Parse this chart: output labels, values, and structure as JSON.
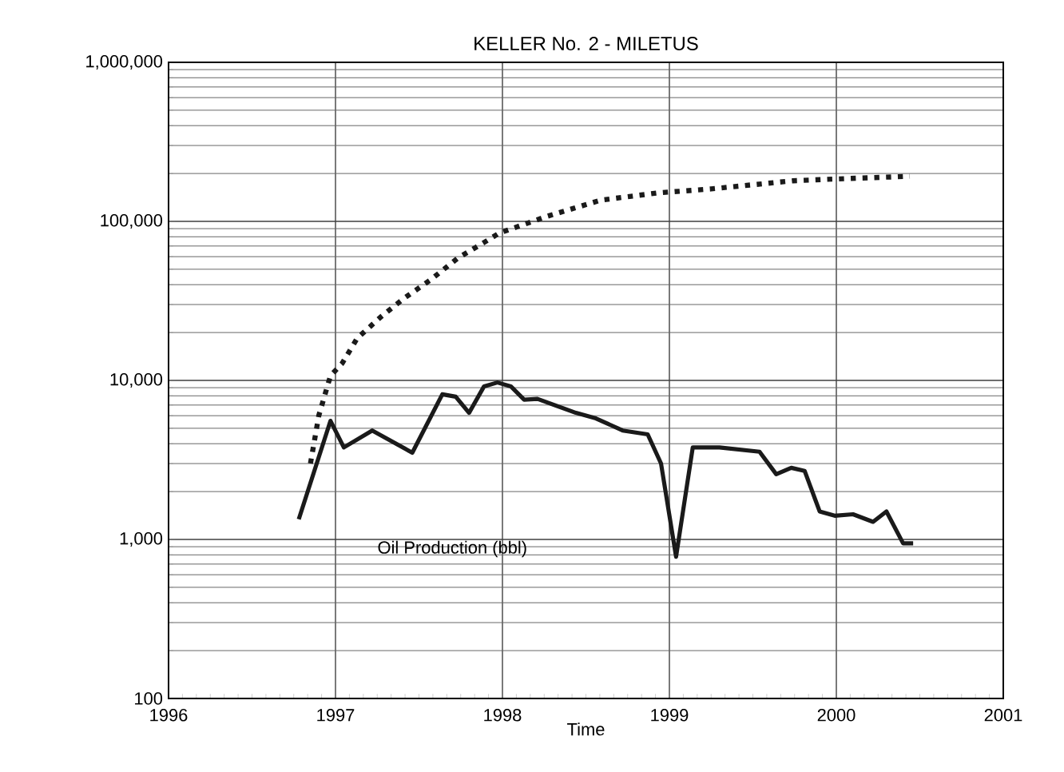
{
  "chart_data": {
    "type": "line",
    "title": "KELLER No. 2 - MILETUS",
    "xlabel": "Time",
    "log": "y",
    "grid": true,
    "marker": "none",
    "xlim": [
      1996,
      2001
    ],
    "xticks": [
      1996,
      1997,
      1998,
      1999,
      2000,
      2001
    ],
    "ylim": [
      100,
      1000000
    ],
    "yticks": [
      {
        "value": 100,
        "label": "100"
      },
      {
        "value": 1000,
        "label": "1,000"
      },
      {
        "value": 10000,
        "label": "10,000"
      },
      {
        "value": 100000,
        "label": "100,000"
      },
      {
        "value": 1000000,
        "label": "1,000,000"
      }
    ],
    "annotations": [
      "Oil Production (bbl)"
    ],
    "series": [
      {
        "color": "#1a1a1a",
        "line_style": "solid",
        "x": [
          1996.78,
          1996.97,
          1997.05,
          1997.22,
          1997.46,
          1997.64,
          1997.72,
          1997.8,
          1997.89,
          1997.97,
          1998.05,
          1998.13,
          1998.21,
          1998.44,
          1998.56,
          1998.72,
          1998.87,
          1998.95,
          1999.04,
          1999.14,
          1999.3,
          1999.54,
          1999.64,
          1999.73,
          1999.81,
          1999.9,
          1999.99,
          2000.1,
          2000.22,
          2000.3,
          2000.4,
          2000.46
        ],
        "values": [
          1340,
          5570,
          3790,
          4840,
          3510,
          8180,
          7900,
          6250,
          9180,
          9700,
          9180,
          7570,
          7650,
          6250,
          5770,
          4840,
          4580,
          3000,
          778,
          3790,
          3790,
          3560,
          2570,
          2820,
          2700,
          1500,
          1410,
          1440,
          1290,
          1500,
          945,
          945
        ]
      },
      {
        "color": "#1a1a1a",
        "line_style": "dotted",
        "x": [
          1996.85,
          1996.9,
          1996.97,
          1997.04,
          1997.13,
          1997.27,
          1997.41,
          1997.57,
          1997.73,
          1997.89,
          1997.98,
          1998.26,
          1998.59,
          1998.93,
          1999.25,
          1999.74,
          2000.07,
          2000.44
        ],
        "values": [
          3000,
          6010,
          10700,
          12800,
          18400,
          25000,
          32800,
          42900,
          58500,
          73700,
          84300,
          107000,
          136000,
          151000,
          160000,
          180000,
          186000,
          192000
        ]
      }
    ]
  }
}
